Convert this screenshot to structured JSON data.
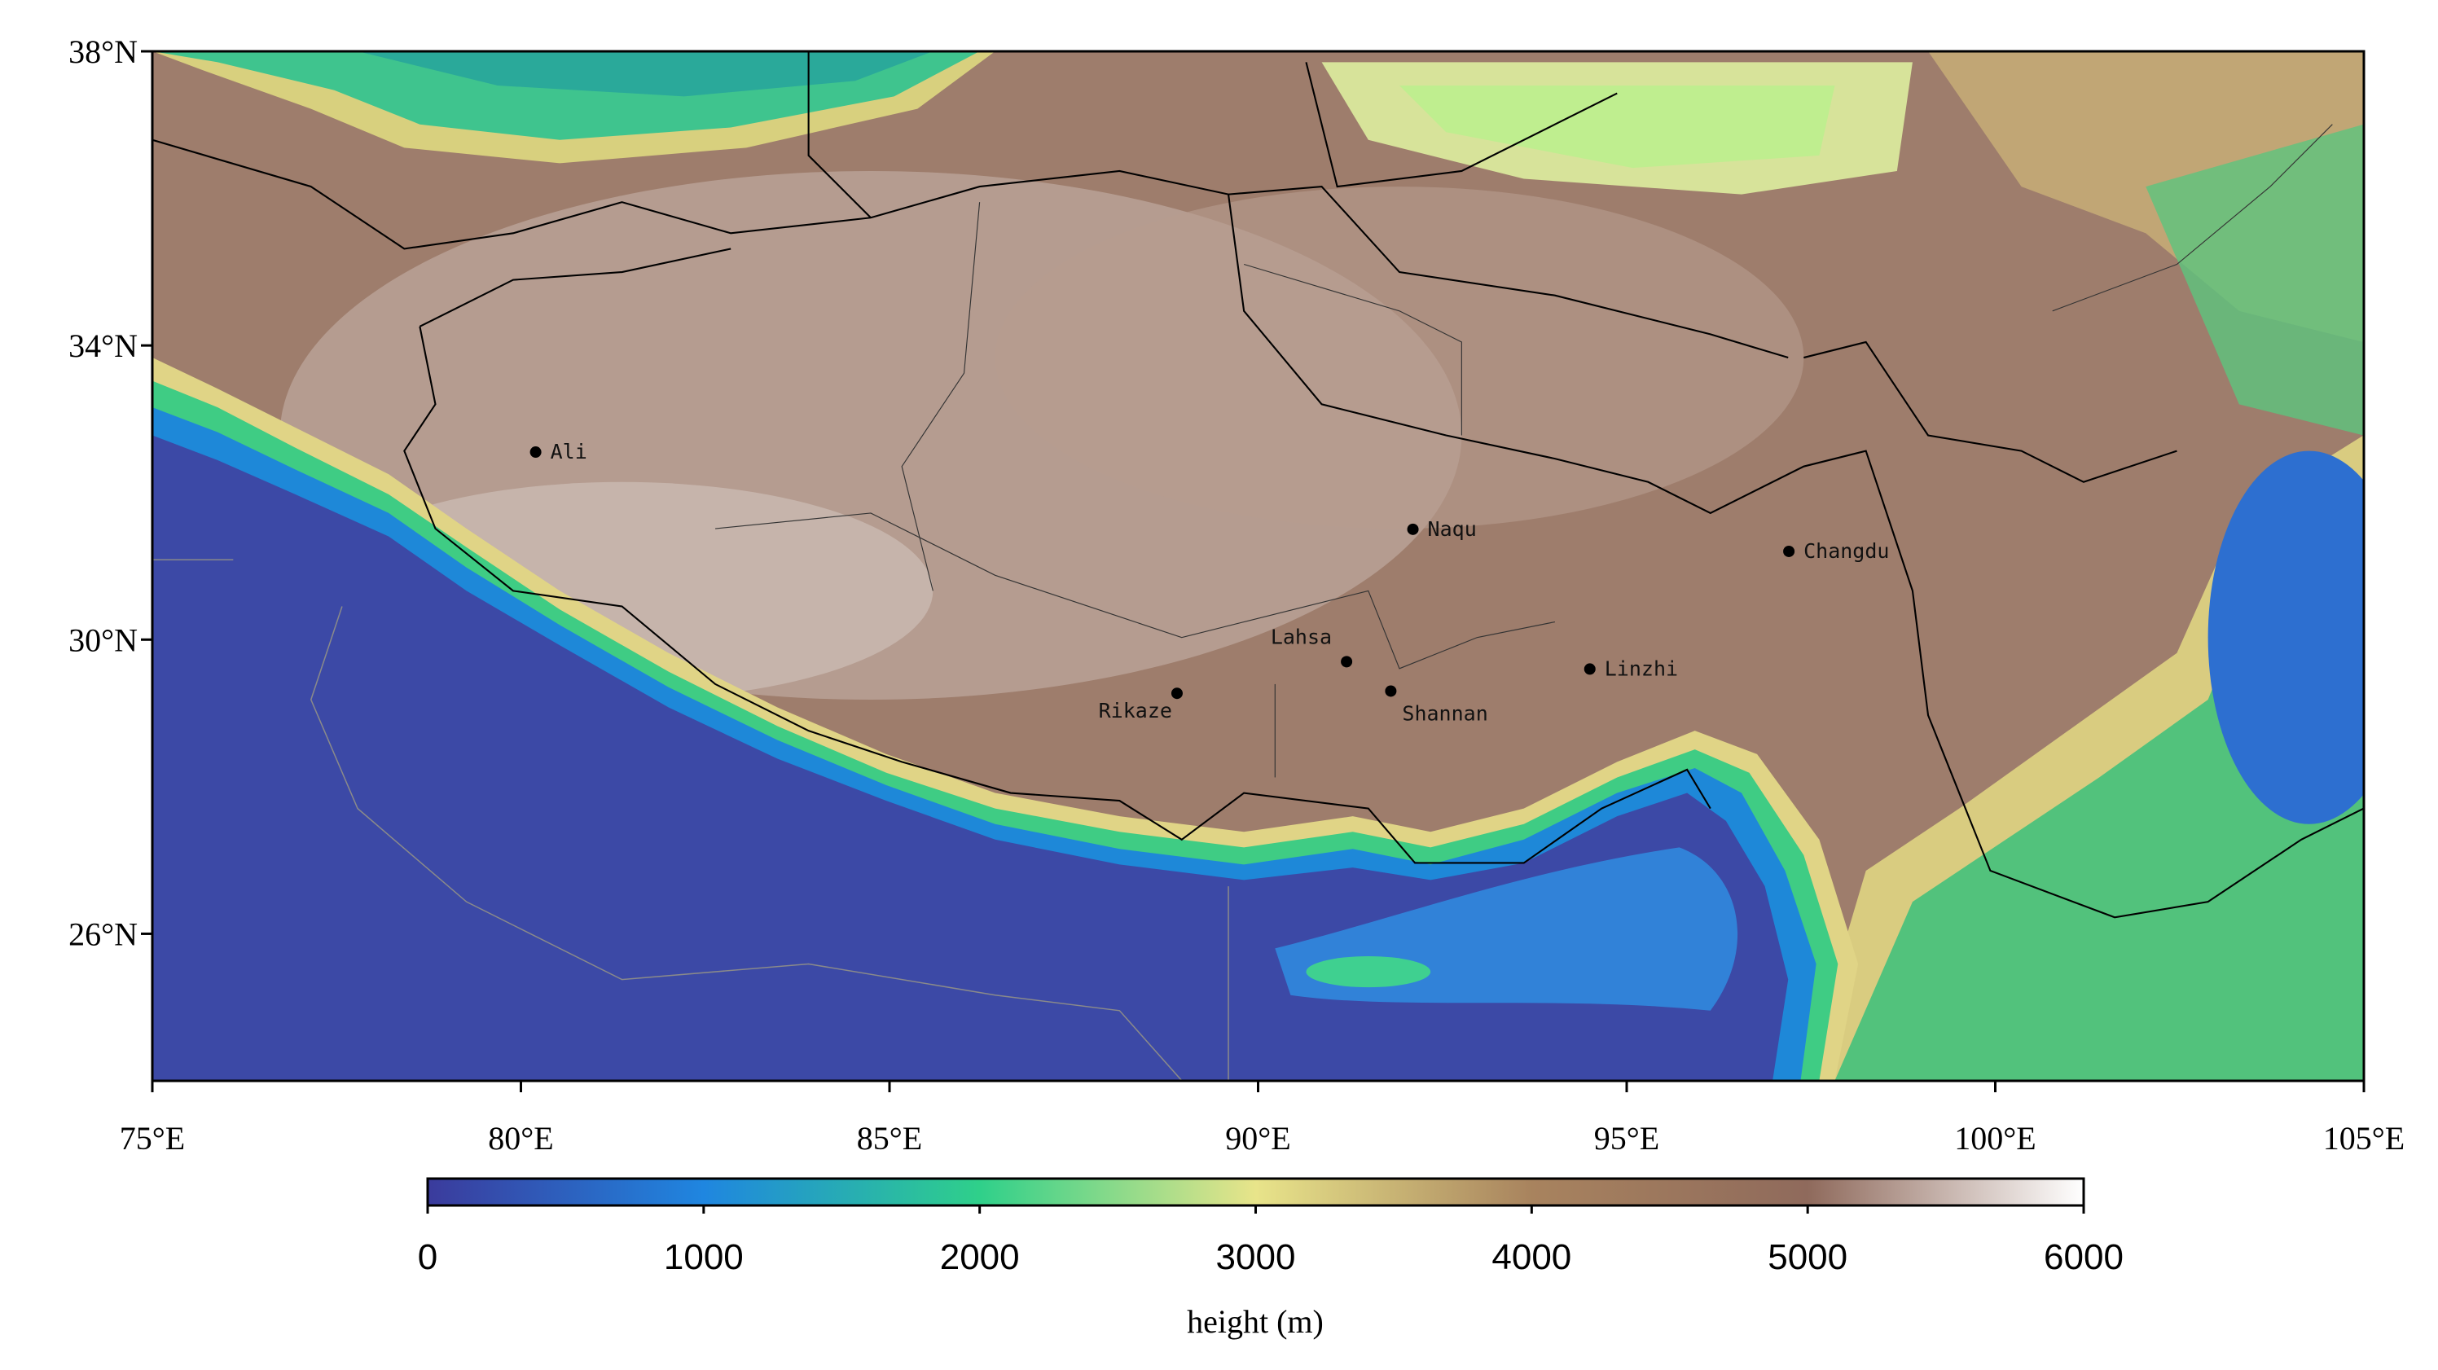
{
  "map": {
    "lonlim": [
      75,
      105
    ],
    "latlim": [
      24,
      38
    ],
    "xticks": [
      {
        "value": 75,
        "label": "75°E"
      },
      {
        "value": 80,
        "label": "80°E"
      },
      {
        "value": 85,
        "label": "85°E"
      },
      {
        "value": 90,
        "label": "90°E"
      },
      {
        "value": 95,
        "label": "95°E"
      },
      {
        "value": 100,
        "label": "100°E"
      },
      {
        "value": 105,
        "label": "105°E"
      }
    ],
    "yticks": [
      {
        "value": 26,
        "label": "26°N"
      },
      {
        "value": 30,
        "label": "30°N"
      },
      {
        "value": 34,
        "label": "34°N"
      },
      {
        "value": 38,
        "label": "38°N"
      }
    ],
    "cities": [
      {
        "name": "Ali",
        "lon": 80.2,
        "lat": 32.55
      },
      {
        "name": "Naqu",
        "lon": 92.1,
        "lat": 31.5
      },
      {
        "name": "Changdu",
        "lon": 97.2,
        "lat": 31.2
      },
      {
        "name": "Lahsa",
        "lon": 91.2,
        "lat": 29.7
      },
      {
        "name": "Rikaze",
        "lon": 88.9,
        "lat": 29.27
      },
      {
        "name": "Shannan",
        "lon": 91.8,
        "lat": 29.3
      },
      {
        "name": "Linzhi",
        "lon": 94.5,
        "lat": 29.6
      }
    ],
    "colorbar": {
      "label": "height (m)",
      "clim": [
        0,
        6000
      ],
      "ticks": [
        0,
        1000,
        2000,
        3000,
        4000,
        5000,
        6000
      ],
      "colors": [
        "#3b3b9c",
        "#1f86e0",
        "#2fd08a",
        "#e8e48a",
        "#a8835e",
        "#8f6a5c",
        "#ffffff"
      ]
    }
  }
}
